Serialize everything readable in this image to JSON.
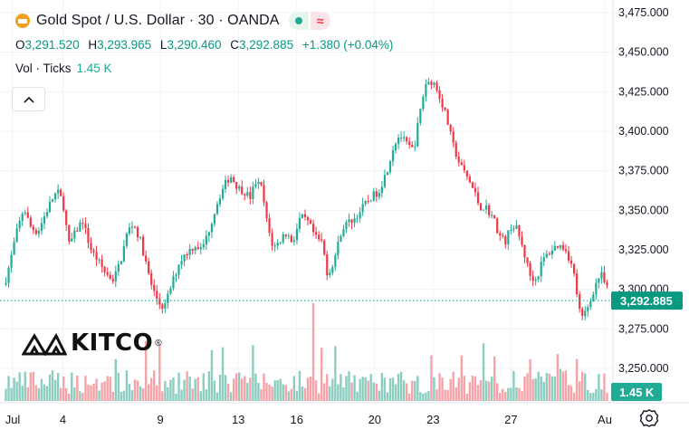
{
  "header": {
    "title": "Gold Spot / U.S. Dollar · 30 · OANDA",
    "open_label": "O",
    "open": "3,291.520",
    "high_label": "H",
    "high": "3,293.965",
    "low_label": "L",
    "low": "3,290.460",
    "close_label": "C",
    "close": "3,292.885",
    "change": "+1.380 (+0.04%)"
  },
  "volume": {
    "label": "Vol · Ticks",
    "value": "1.45 K"
  },
  "logo": {
    "text": "KITCO",
    "mark": "®"
  },
  "colors": {
    "up": "#22ab94",
    "down": "#f23645",
    "up_vol": "#8ccdc0",
    "down_vol": "#f4a3a8",
    "last_price": "#089981"
  },
  "icons": {
    "coin": "gold-coin-icon",
    "collapse": "chevron-up-icon",
    "settings": "gear-icon"
  },
  "chart_data": {
    "type": "candlestick",
    "title": "Gold Spot / U.S. Dollar · 30 · OANDA",
    "y_ticks": [
      "3,475.000",
      "3,450.000",
      "3,425.000",
      "3,400.000",
      "3,375.000",
      "3,350.000",
      "3,325.000",
      "3,300.000",
      "3,275.000",
      "3,250.000"
    ],
    "y_range": [
      3237,
      3480
    ],
    "x_ticks": [
      "Jul",
      "4",
      "9",
      "13",
      "16",
      "20",
      "23",
      "27",
      "Au"
    ],
    "x_range_days": [
      1,
      32
    ],
    "last_price": 3292.885,
    "last_price_label": "3,292.885",
    "volume_label": "1.45 K",
    "path": [
      [
        1,
        3303
      ],
      [
        1.3,
        3318
      ],
      [
        1.6,
        3335
      ],
      [
        2,
        3352
      ],
      [
        2.3,
        3340
      ],
      [
        2.7,
        3336
      ],
      [
        3,
        3345
      ],
      [
        3.4,
        3356
      ],
      [
        3.7,
        3362
      ],
      [
        4,
        3355
      ],
      [
        4.3,
        3328
      ],
      [
        4.6,
        3335
      ],
      [
        5,
        3344
      ],
      [
        5.4,
        3326
      ],
      [
        5.8,
        3318
      ],
      [
        6.2,
        3310
      ],
      [
        6.6,
        3306
      ],
      [
        7,
        3320
      ],
      [
        7.3,
        3336
      ],
      [
        7.6,
        3342
      ],
      [
        8,
        3330
      ],
      [
        8.3,
        3314
      ],
      [
        8.6,
        3300
      ],
      [
        8.9,
        3292
      ],
      [
        9.2,
        3288
      ],
      [
        9.6,
        3304
      ],
      [
        10,
        3318
      ],
      [
        10.4,
        3324
      ],
      [
        10.8,
        3328
      ],
      [
        11.1,
        3325
      ],
      [
        11.4,
        3334
      ],
      [
        11.7,
        3346
      ],
      [
        12,
        3358
      ],
      [
        12.3,
        3366
      ],
      [
        12.6,
        3372
      ],
      [
        13,
        3364
      ],
      [
        13.3,
        3362
      ],
      [
        13.6,
        3358
      ],
      [
        13.9,
        3368
      ],
      [
        14.2,
        3364
      ],
      [
        14.5,
        3340
      ],
      [
        14.8,
        3326
      ],
      [
        15.1,
        3330
      ],
      [
        15.4,
        3336
      ],
      [
        15.8,
        3330
      ],
      [
        16.2,
        3346
      ],
      [
        16.6,
        3342
      ],
      [
        17,
        3332
      ],
      [
        17.3,
        3330
      ],
      [
        17.6,
        3308
      ],
      [
        18,
        3322
      ],
      [
        18.3,
        3338
      ],
      [
        18.6,
        3342
      ],
      [
        19,
        3345
      ],
      [
        19.4,
        3352
      ],
      [
        19.8,
        3358
      ],
      [
        20.2,
        3362
      ],
      [
        20.6,
        3374
      ],
      [
        21,
        3392
      ],
      [
        21.3,
        3398
      ],
      [
        21.6,
        3392
      ],
      [
        22,
        3388
      ],
      [
        22.3,
        3410
      ],
      [
        22.6,
        3430
      ],
      [
        23,
        3432
      ],
      [
        23.4,
        3420
      ],
      [
        23.7,
        3408
      ],
      [
        24,
        3392
      ],
      [
        24.4,
        3378
      ],
      [
        24.8,
        3370
      ],
      [
        25.1,
        3362
      ],
      [
        25.4,
        3352
      ],
      [
        25.7,
        3352
      ],
      [
        26.1,
        3345
      ],
      [
        26.4,
        3334
      ],
      [
        26.7,
        3330
      ],
      [
        27,
        3340
      ],
      [
        27.3,
        3338
      ],
      [
        27.6,
        3326
      ],
      [
        28,
        3308
      ],
      [
        28.3,
        3306
      ],
      [
        28.6,
        3318
      ],
      [
        29,
        3324
      ],
      [
        29.4,
        3328
      ],
      [
        29.8,
        3326
      ],
      [
        30.2,
        3312
      ],
      [
        30.6,
        3280
      ],
      [
        31,
        3290
      ],
      [
        31.3,
        3302
      ],
      [
        31.6,
        3310
      ],
      [
        32,
        3298
      ],
      [
        32.4,
        3288
      ]
    ]
  }
}
